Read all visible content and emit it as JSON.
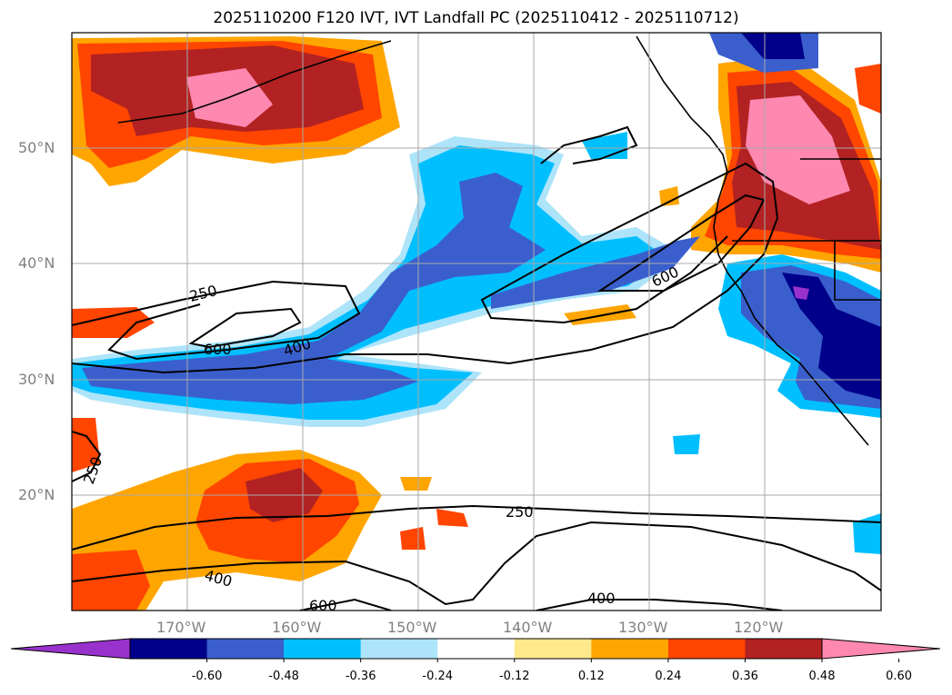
{
  "title": "2025110200 F120 IVT, IVT Landfall PC (2025110412 - 2025110712)",
  "map": {
    "lat_labels": [
      "50°N",
      "40°N",
      "30°N",
      "20°N"
    ],
    "lon_labels": [
      "170°W",
      "160°W",
      "150°W",
      "140°W",
      "130°W",
      "120°W"
    ],
    "contour_labels": [
      "250",
      "600",
      "400",
      "600",
      "250",
      "250",
      "400",
      "600"
    ],
    "extent": {
      "lon_min": -180,
      "lon_max": -110,
      "lat_min": 10,
      "lat_max": 60
    }
  },
  "colorbar": {
    "ticks": [
      "-0.60",
      "-0.48",
      "-0.36",
      "-0.24",
      "-0.12",
      "0.12",
      "0.24",
      "0.36",
      "0.48",
      "0.60"
    ],
    "colors": [
      "#9932cc",
      "#00008b",
      "#3a5fcd",
      "#00bfff",
      "#aee4fa",
      "#ffffff",
      "#ffe98a",
      "#ffa500",
      "#ff4500",
      "#b22222",
      "#ff88b0"
    ]
  }
}
